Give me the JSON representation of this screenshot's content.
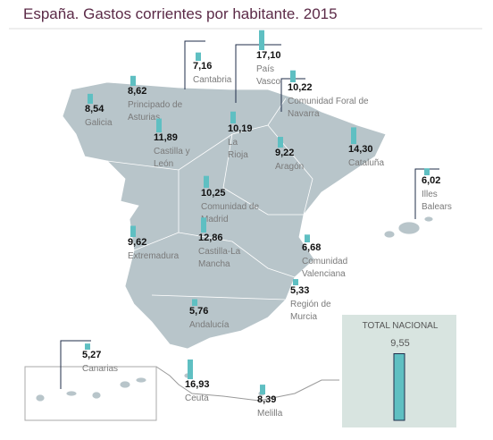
{
  "title": "España. Gastos corrientes por habitante. 2015",
  "regions": [
    {
      "name": [
        "Galicia"
      ],
      "value": 8.54,
      "value_label": "8,54"
    },
    {
      "name": [
        "Principado de",
        "Asturias"
      ],
      "value": 8.62,
      "value_label": "8,62"
    },
    {
      "name": [
        "Cantabria"
      ],
      "value": 7.16,
      "value_label": "7,16"
    },
    {
      "name": [
        "País",
        "Vasco"
      ],
      "value": 17.1,
      "value_label": "17,10"
    },
    {
      "name": [
        "Comunidad Foral de",
        "Navarra"
      ],
      "value": 10.22,
      "value_label": "10,22"
    },
    {
      "name": [
        "Castilla y",
        "León"
      ],
      "value": 11.89,
      "value_label": "11,89"
    },
    {
      "name": [
        "La",
        "Rioja"
      ],
      "value": 10.19,
      "value_label": "10,19"
    },
    {
      "name": [
        "Aragón"
      ],
      "value": 9.22,
      "value_label": "9,22"
    },
    {
      "name": [
        "Cataluña"
      ],
      "value": 14.3,
      "value_label": "14,30"
    },
    {
      "name": [
        "Illes",
        "Balears"
      ],
      "value": 6.02,
      "value_label": "6,02"
    },
    {
      "name": [
        "Comunidad de",
        "Madrid"
      ],
      "value": 10.25,
      "value_label": "10,25"
    },
    {
      "name": [
        "Extremadura"
      ],
      "value": 9.62,
      "value_label": "9,62"
    },
    {
      "name": [
        "Castilla-La",
        "Mancha"
      ],
      "value": 12.86,
      "value_label": "12,86"
    },
    {
      "name": [
        "Comunidad",
        "Valenciana"
      ],
      "value": 6.68,
      "value_label": "6,68"
    },
    {
      "name": [
        "Región de",
        "Murcia"
      ],
      "value": 5.33,
      "value_label": "5,33"
    },
    {
      "name": [
        "Andalucía"
      ],
      "value": 5.76,
      "value_label": "5,76"
    },
    {
      "name": [
        "Canarias"
      ],
      "value": 5.27,
      "value_label": "5,27"
    },
    {
      "name": [
        "Ceuta"
      ],
      "value": 16.93,
      "value_label": "16,93"
    },
    {
      "name": [
        "Melilla"
      ],
      "value": 8.39,
      "value_label": "8,39"
    }
  ],
  "total": {
    "label": "TOTAL NACIONAL",
    "value": 9.55,
    "value_label": "9,55"
  }
}
